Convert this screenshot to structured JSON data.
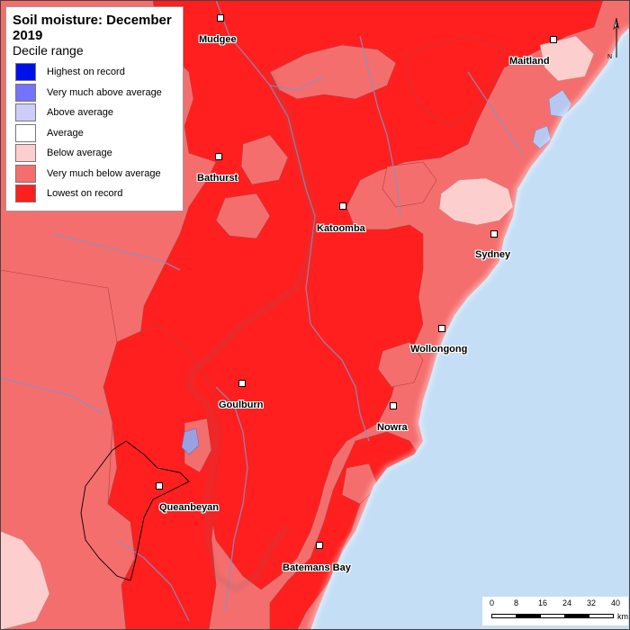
{
  "legend": {
    "title": "Soil moisture: December 2019",
    "subtitle": "Decile range",
    "items": [
      {
        "label": "Highest on record",
        "color": "#0010e8"
      },
      {
        "label": "Very much above average",
        "color": "#7373ff"
      },
      {
        "label": "Above average",
        "color": "#cccdfa"
      },
      {
        "label": "Average",
        "color": "#ffffff"
      },
      {
        "label": "Below average",
        "color": "#fdcece"
      },
      {
        "label": "Very much below average",
        "color": "#f56e6e"
      },
      {
        "label": "Lowest on record",
        "color": "#ff1f1f"
      }
    ]
  },
  "cities": [
    {
      "name": "Mudgee"
    },
    {
      "name": "Maitland"
    },
    {
      "name": "Bathurst"
    },
    {
      "name": "Katoomba"
    },
    {
      "name": "Sydney"
    },
    {
      "name": "Wollongong"
    },
    {
      "name": "Goulburn"
    },
    {
      "name": "Nowra"
    },
    {
      "name": "Queanbeyan"
    },
    {
      "name": "Batemans Bay"
    }
  ],
  "scale_bar": {
    "ticks": [
      "0",
      "8",
      "16",
      "24",
      "32",
      "40"
    ],
    "unit": "km"
  },
  "north_arrow": {
    "label": "N"
  },
  "colors": {
    "ocean": "#c4def5",
    "lowest": "#ff1f1f",
    "very_much_below": "#f56e6e",
    "below": "#fdcece",
    "above": "#cccdfa",
    "very_much_above": "#7373ff",
    "river": "#8a8fc0"
  }
}
